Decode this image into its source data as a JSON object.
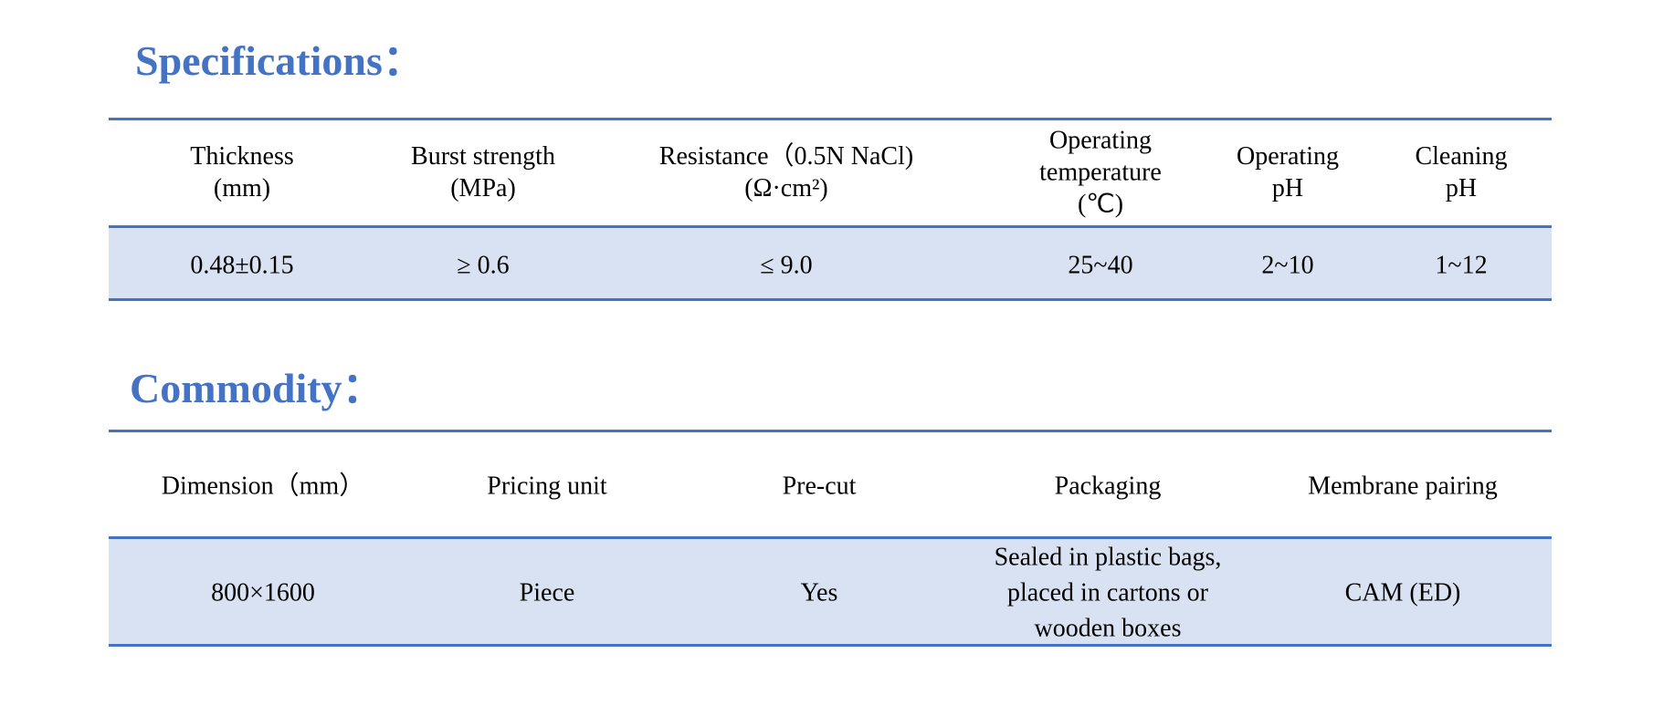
{
  "specifications": {
    "title": "Specifications：",
    "headers": [
      [
        "Thickness",
        "(mm)"
      ],
      [
        "Burst strength",
        "(MPa)"
      ],
      [
        "Resistance（0.5N NaCl)",
        "(Ω·cm²)"
      ],
      [
        "Operating",
        "temperature",
        "(℃)"
      ],
      [
        "Operating",
        "pH"
      ],
      [
        "Cleaning",
        "pH"
      ]
    ],
    "values": [
      "0.48±0.15",
      "≥ 0.6",
      "≤ 9.0",
      "25~40",
      "2~10",
      "1~12"
    ]
  },
  "commodity": {
    "title": "Commodity：",
    "headers": [
      "Dimension（mm）",
      "Pricing unit",
      "Pre-cut",
      "Packaging",
      "Membrane pairing"
    ],
    "values": [
      "800×1600",
      "Piece",
      "Yes",
      "Sealed in plastic bags, placed in cartons or wooden boxes",
      "CAM (ED)"
    ]
  }
}
